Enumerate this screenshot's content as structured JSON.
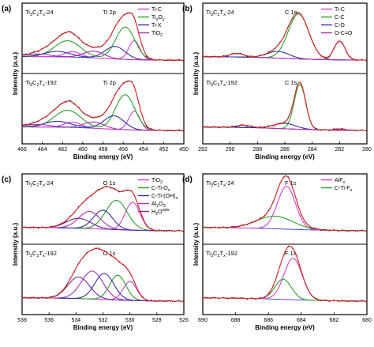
{
  "chart_data": [
    {
      "panel": "(a)",
      "type": "line",
      "region": "Ti 2p",
      "xlabel": "Binding energy (eV)",
      "ylabel": "Intensity (a.u.)",
      "xlim": [
        466,
        450
      ],
      "xticks": [
        466,
        464,
        462,
        460,
        458,
        456,
        454,
        452,
        450
      ],
      "legend_position": "top-right",
      "legend": [
        {
          "label": "Ti-C",
          "color": "#d040d0"
        },
        {
          "label": "TixOy",
          "color": "#2aa02a"
        },
        {
          "label": "Ti-X",
          "color": "#3030a0"
        },
        {
          "label": "TiO2",
          "color": "#b030b0"
        }
      ],
      "samples": [
        {
          "name": "Ti3C2Tx-24",
          "components": [
            {
              "name": "Ti-C",
              "color": "#d040d0",
              "peaks": [
                [
                  454.9,
                  0.42,
                  0.55
                ],
                [
                  461.0,
                  0.12,
                  0.8
                ]
              ]
            },
            {
              "name": "TixOy",
              "color": "#2aa02a",
              "peaks": [
                [
                  455.8,
                  0.72,
                  0.95
                ],
                [
                  461.5,
                  0.36,
                  1.3
                ]
              ]
            },
            {
              "name": "Ti-X",
              "color": "#3030a0",
              "peaks": [
                [
                  456.8,
                  0.28,
                  1.0
                ],
                [
                  462.5,
                  0.12,
                  1.3
                ]
              ]
            },
            {
              "name": "TiO2",
              "color": "#b030b0",
              "peaks": [
                [
                  458.9,
                  0.15,
                  1.0
                ],
                [
                  464.5,
                  0.06,
                  1.2
                ]
              ]
            }
          ]
        },
        {
          "name": "Ti3C2Tx-192",
          "components": [
            {
              "name": "Ti-C",
              "color": "#d040d0",
              "peaks": [
                [
                  454.9,
                  0.42,
                  0.55
                ],
                [
                  461.0,
                  0.12,
                  0.8
                ]
              ]
            },
            {
              "name": "TixOy",
              "color": "#2aa02a",
              "peaks": [
                [
                  455.8,
                  0.78,
                  0.95
                ],
                [
                  461.5,
                  0.38,
                  1.3
                ]
              ]
            },
            {
              "name": "Ti-X",
              "color": "#3030a0",
              "peaks": [
                [
                  456.9,
                  0.3,
                  1.0
                ],
                [
                  462.5,
                  0.13,
                  1.3
                ]
              ]
            },
            {
              "name": "TiO2",
              "color": "#b030b0",
              "peaks": [
                [
                  458.9,
                  0.14,
                  1.0
                ],
                [
                  464.5,
                  0.06,
                  1.2
                ]
              ]
            }
          ]
        }
      ]
    },
    {
      "panel": "(b)",
      "type": "line",
      "region": "C 1s",
      "xlabel": "Binding energy (eV)",
      "ylabel": "Intensity (a.u.)",
      "xlim": [
        292,
        280
      ],
      "xticks": [
        292,
        290,
        288,
        286,
        284,
        282,
        280
      ],
      "legend_position": "top-right",
      "legend": [
        {
          "label": "Ti-C",
          "color": "#d040d0"
        },
        {
          "label": "C-C",
          "color": "#2aa02a"
        },
        {
          "label": "C-O",
          "color": "#3030a0"
        },
        {
          "label": "O-C=O",
          "color": "#b030b0"
        }
      ],
      "samples": [
        {
          "name": "Ti3C2Tx-24",
          "components": [
            {
              "name": "Ti-C",
              "color": "#d040d0",
              "peaks": [
                [
                  282.0,
                  0.42,
                  0.4
                ]
              ]
            },
            {
              "name": "C-C",
              "color": "#2aa02a",
              "peaks": [
                [
                  285.0,
                  1.0,
                  0.75
                ]
              ]
            },
            {
              "name": "C-O",
              "color": "#3030a0",
              "peaks": [
                [
                  286.5,
                  0.15,
                  0.8
                ]
              ]
            },
            {
              "name": "O-C=O",
              "color": "#b030b0",
              "peaks": [
                [
                  289.5,
                  0.08,
                  0.5
                ]
              ]
            }
          ]
        },
        {
          "name": "Ti3C2Tx-192",
          "components": [
            {
              "name": "Ti-C",
              "color": "#d040d0",
              "peaks": [
                [
                  282.0,
                  0.03,
                  0.4
                ]
              ]
            },
            {
              "name": "C-C",
              "color": "#2aa02a",
              "peaks": [
                [
                  284.9,
                  1.0,
                  0.42
                ]
              ]
            },
            {
              "name": "C-O",
              "color": "#3030a0",
              "peaks": [
                [
                  286.0,
                  0.12,
                  0.8
                ]
              ]
            },
            {
              "name": "O-C=O",
              "color": "#b030b0",
              "peaks": [
                [
                  289.0,
                  0.05,
                  0.5
                ]
              ]
            }
          ]
        }
      ]
    },
    {
      "panel": "(c)",
      "type": "line",
      "region": "O 1s",
      "xlabel": "Binding energy (eV)",
      "ylabel": "Intensity (a.u.)",
      "xlim": [
        538,
        526
      ],
      "xticks": [
        538,
        536,
        534,
        532,
        530,
        528,
        526
      ],
      "legend_position": "top-right",
      "legend": [
        {
          "label": "TiO2",
          "color": "#d040d0"
        },
        {
          "label": "C-Ti-Ox",
          "color": "#2aa02a"
        },
        {
          "label": "C-Ti-(OH)x",
          "color": "#3030a0"
        },
        {
          "label": "Al2O3",
          "color": "#b030b0"
        },
        {
          "label": "H2Oads",
          "color": "#6a2aa0"
        }
      ],
      "samples": [
        {
          "name": "Ti3C2Tx-24",
          "components": [
            {
              "name": "TiO2",
              "color": "#d040d0",
              "peaks": [
                [
                  529.8,
                  0.62,
                  0.55
                ]
              ]
            },
            {
              "name": "C-Ti-Ox",
              "color": "#2aa02a",
              "peaks": [
                [
                  531.0,
                  0.65,
                  0.8
                ]
              ]
            },
            {
              "name": "C-Ti-(OH)x",
              "color": "#3030a0",
              "peaks": [
                [
                  532.0,
                  0.42,
                  0.7
                ]
              ]
            },
            {
              "name": "Al2O3",
              "color": "#b030b0",
              "peaks": [
                [
                  533.0,
                  0.38,
                  0.8
                ]
              ]
            },
            {
              "name": "H2Oads",
              "color": "#6a2aa0",
              "peaks": [
                [
                  533.8,
                  0.22,
                  0.9
                ]
              ]
            }
          ]
        },
        {
          "name": "Ti3C2Tx-192",
          "components": [
            {
              "name": "TiO2",
              "color": "#d040d0",
              "peaks": [
                [
                  530.0,
                  0.42,
                  0.5
                ]
              ]
            },
            {
              "name": "C-Ti-Ox",
              "color": "#2aa02a",
              "peaks": [
                [
                  530.9,
                  0.55,
                  0.6
                ]
              ]
            },
            {
              "name": "C-Ti-(OH)x",
              "color": "#3030a0",
              "peaks": [
                [
                  531.9,
                  0.58,
                  0.7
                ]
              ]
            },
            {
              "name": "Al2O3",
              "color": "#b030b0",
              "peaks": [
                [
                  532.8,
                  0.62,
                  0.8
                ]
              ]
            },
            {
              "name": "H2Oads",
              "color": "#6a2aa0",
              "peaks": [
                [
                  533.8,
                  0.48,
                  0.8
                ]
              ]
            }
          ]
        }
      ]
    },
    {
      "panel": "(d)",
      "type": "line",
      "region": "F 1s",
      "xlabel": "Binding energy (eV)",
      "ylabel": "Intensity (a.u.)",
      "xlim": [
        690,
        680
      ],
      "xticks": [
        690,
        688,
        686,
        684,
        682,
        680
      ],
      "legend_position": "top-right",
      "legend": [
        {
          "label": "AlFx",
          "color": "#d040d0"
        },
        {
          "label": "C-Ti-Fx",
          "color": "#2aa02a"
        }
      ],
      "samples": [
        {
          "name": "Ti3C2Tx-24",
          "components": [
            {
              "name": "AlFx",
              "color": "#d040d0",
              "peaks": [
                [
                  684.9,
                  0.95,
                  0.55
                ]
              ]
            },
            {
              "name": "C-Ti-Fx",
              "color": "#2aa02a",
              "peaks": [
                [
                  685.6,
                  0.28,
                  1.1
                ]
              ]
            }
          ]
        },
        {
          "name": "Ti3C2Tx-192",
          "components": [
            {
              "name": "AlFx",
              "color": "#d040d0",
              "peaks": [
                [
                  684.5,
                  0.92,
                  0.55
                ]
              ]
            },
            {
              "name": "C-Ti-Fx",
              "color": "#2aa02a",
              "peaks": [
                [
                  685.1,
                  0.45,
                  0.5
                ]
              ]
            }
          ]
        }
      ]
    }
  ]
}
